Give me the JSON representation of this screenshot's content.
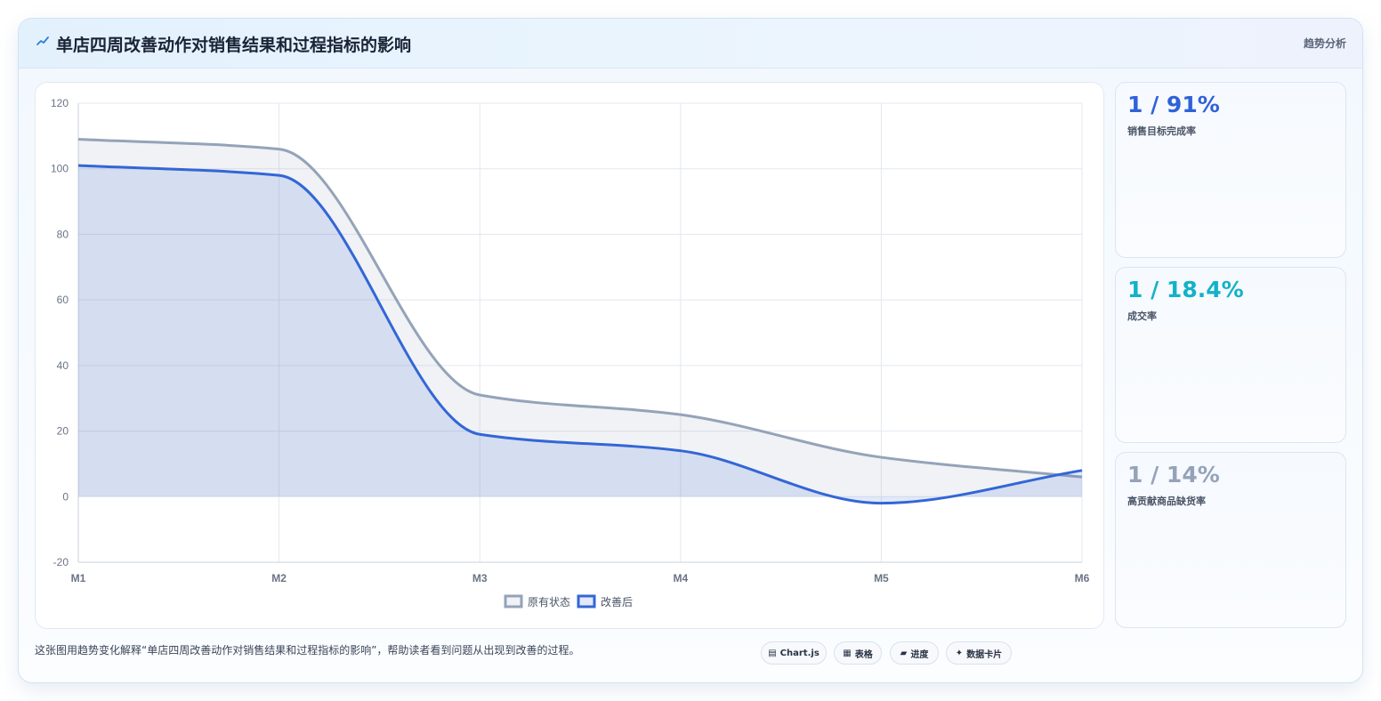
{
  "header": {
    "title": "单店四周改善动作对销售结果和过程指标的影响",
    "tag": "趋势分析",
    "icon": "trend-line-icon"
  },
  "chart_data": {
    "type": "line",
    "x": [
      "M1",
      "M2",
      "M3",
      "M4",
      "M5",
      "M6"
    ],
    "series": [
      {
        "name": "原有状态",
        "values": [
          109,
          106,
          31,
          25,
          12,
          6
        ],
        "color": "#94a3b8",
        "fill": "rgba(148,163,184,0.14)"
      },
      {
        "name": "改善后",
        "values": [
          101,
          98,
          19,
          14,
          -2,
          8
        ],
        "color": "#3366d6",
        "fill": "rgba(51,102,214,0.14)"
      }
    ],
    "ylim": [
      -20,
      120
    ],
    "yticks": [
      120,
      100,
      80,
      60,
      40,
      20,
      0,
      -20
    ],
    "grid": true,
    "legend_position": "bottom",
    "smooth": true
  },
  "stats": [
    {
      "value": "1 / 91%",
      "label": "销售目标完成率",
      "color": "#2f62d8"
    },
    {
      "value": "1 / 18.4%",
      "label": "成交率",
      "color": "#13b2c8"
    },
    {
      "value": "1 / 14%",
      "label": "高贡献商品缺货率",
      "color": "#94a3b8"
    }
  ],
  "footnote": "这张图用趋势变化解释“单店四周改善动作对销售结果和过程指标的影响”，帮助读者看到问题从出现到改善的过程。",
  "chips": [
    {
      "icon": "▤",
      "label": "Chart.js"
    },
    {
      "icon": "▦",
      "label": "表格"
    },
    {
      "icon": "▰",
      "label": "进度"
    },
    {
      "icon": "✦",
      "label": "数据卡片"
    }
  ]
}
